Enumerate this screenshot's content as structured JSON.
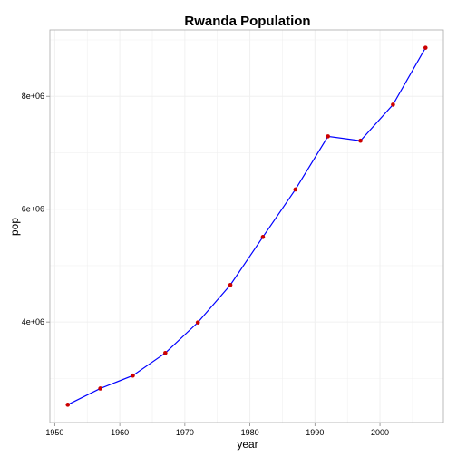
{
  "chart_data": {
    "type": "line",
    "title": "Rwanda Population",
    "xlabel": "year",
    "ylabel": "pop",
    "x": [
      1952,
      1957,
      1962,
      1967,
      1972,
      1977,
      1982,
      1987,
      1992,
      1997,
      2002,
      2007
    ],
    "series": [
      {
        "values": [
          2534927,
          2822082,
          3051242,
          3451079,
          3992121,
          4657072,
          5507565,
          6349365,
          7290203,
          7212583,
          7852401,
          8860588
        ]
      }
    ],
    "xlim": [
      1949.25,
      2009.75
    ],
    "ylim": [
      2218644,
      9176871
    ],
    "x_ticks": [
      1950,
      1960,
      1970,
      1980,
      1990,
      2000
    ],
    "x_tick_labels": [
      "1950",
      "1960",
      "1970",
      "1980",
      "1990",
      "2000"
    ],
    "y_ticks": [
      4000000,
      6000000,
      8000000
    ],
    "y_tick_labels": [
      "4e+06",
      "6e+06",
      "8e+06"
    ],
    "grid": true,
    "colors": {
      "line": "#0000ff",
      "point": "#cc0000",
      "grid": "#f0f0f0",
      "panel_border": "#aaaaaa",
      "tick": "#888888"
    }
  }
}
